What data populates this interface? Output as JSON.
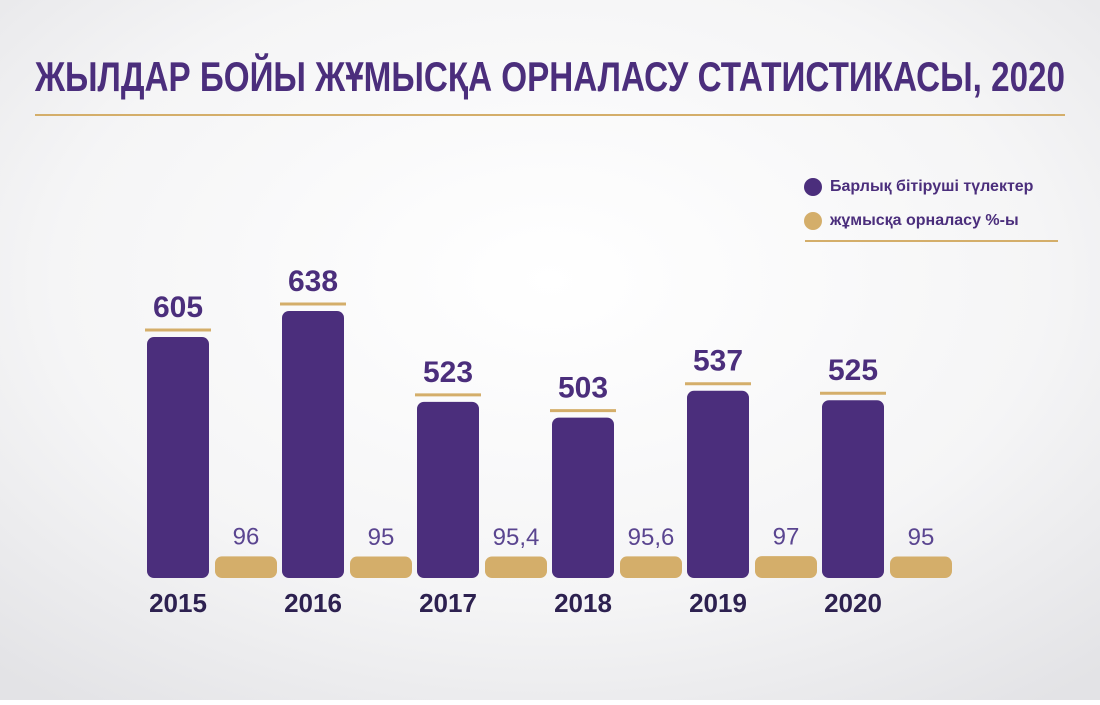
{
  "chart_data": {
    "type": "bar",
    "title": "ЖЫЛДАР БОЙЫ ЖҰМЫСҚА ОРНАЛАСУ СТАТИСТИКАСЫ, 2020",
    "categories": [
      "2015",
      "2016",
      "2017",
      "2018",
      "2019",
      "2020"
    ],
    "series": [
      {
        "name": "Барлық бітіруші түлектер",
        "color": "#4b2e7c",
        "values": [
          605,
          638,
          523,
          503,
          537,
          525
        ]
      },
      {
        "name": "жұмысқа орналасу %-ы",
        "color": "#d4ae6a",
        "axis": "y2",
        "values": [
          96,
          95,
          95.4,
          95.6,
          97,
          95
        ],
        "value_labels": [
          "96",
          "95",
          "95,4",
          "95,6",
          "97",
          "95"
        ]
      }
    ],
    "ylim": [
      300,
      700
    ],
    "y2lim": [
      0,
      1400
    ],
    "legend": "top-right"
  }
}
